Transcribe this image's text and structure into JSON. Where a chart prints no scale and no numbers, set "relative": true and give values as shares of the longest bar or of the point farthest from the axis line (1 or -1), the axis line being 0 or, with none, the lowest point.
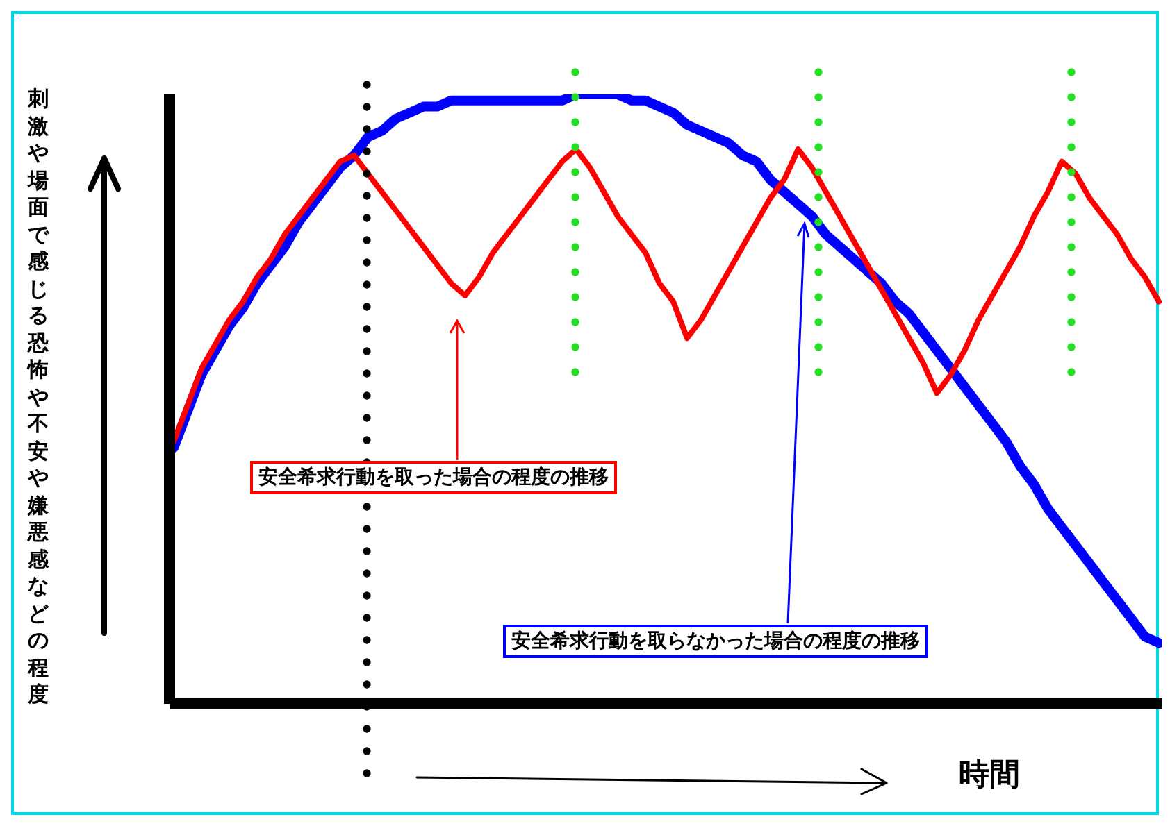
{
  "chart_data": {
    "type": "line",
    "relative": true,
    "xlabel": "時間",
    "ylabel": "刺激や場面で感じる恐怖や不安や嫌悪感などの程度",
    "categories": [
      null,
      null,
      null,
      null,
      null,
      null,
      null,
      null,
      null,
      null,
      null,
      null,
      null,
      null,
      null,
      null,
      null,
      null,
      null,
      null,
      null,
      null,
      null,
      null,
      null,
      null,
      null,
      null,
      null,
      null,
      null,
      null,
      null,
      null,
      null,
      null,
      null,
      null,
      null,
      null,
      null,
      null,
      null,
      null,
      null,
      null,
      null,
      null,
      null,
      null,
      null,
      null,
      null,
      null,
      null,
      null,
      null,
      null,
      null,
      null,
      null,
      null,
      null,
      null,
      null,
      null,
      null,
      null,
      null,
      null,
      null,
      null
    ],
    "series": [
      {
        "color": "#ff0000",
        "values": [
          0.43,
          0.49,
          0.55,
          0.59,
          0.63,
          0.66,
          0.7,
          0.73,
          0.77,
          0.8,
          0.83,
          0.86,
          0.89,
          0.9,
          0.87,
          0.84,
          0.81,
          0.78,
          0.75,
          0.72,
          0.69,
          0.67,
          0.7,
          0.74,
          0.77,
          0.8,
          0.83,
          0.86,
          0.89,
          0.91,
          0.88,
          0.84,
          0.8,
          0.77,
          0.74,
          0.69,
          0.66,
          0.6,
          0.63,
          0.67,
          0.71,
          0.75,
          0.79,
          0.83,
          0.86,
          0.91,
          0.88,
          0.84,
          0.8,
          0.76,
          0.72,
          0.68,
          0.64,
          0.6,
          0.56,
          0.51,
          0.54,
          0.58,
          0.63,
          0.67,
          0.71,
          0.75,
          0.8,
          0.84,
          0.89,
          0.87,
          0.83,
          0.8,
          0.77,
          0.73,
          0.7,
          0.66
        ]
      },
      {
        "color": "#0000ff",
        "values": [
          0.42,
          0.48,
          0.54,
          0.58,
          0.62,
          0.65,
          0.69,
          0.72,
          0.75,
          0.79,
          0.82,
          0.85,
          0.88,
          0.9,
          0.93,
          0.94,
          0.96,
          0.97,
          0.98,
          0.98,
          0.99,
          0.99,
          0.99,
          0.99,
          0.99,
          0.99,
          0.99,
          0.99,
          0.99,
          1,
          1,
          1,
          1,
          0.99,
          0.99,
          0.98,
          0.97,
          0.95,
          0.94,
          0.93,
          0.92,
          0.9,
          0.89,
          0.86,
          0.84,
          0.82,
          0.8,
          0.77,
          0.75,
          0.73,
          0.71,
          0.69,
          0.66,
          0.64,
          0.61,
          0.58,
          0.55,
          0.52,
          0.49,
          0.46,
          0.43,
          0.39,
          0.36,
          0.32,
          0.29,
          0.26,
          0.23,
          0.2,
          0.17,
          0.14,
          0.11,
          0.1
        ]
      }
    ],
    "annotations": [
      "安全希求行動を取った場合の程度の推移",
      "安全希求行動を取らなかった場合の程度の推移"
    ],
    "grid": false,
    "legend": false,
    "marker": "none",
    "line_style": "solid"
  }
}
